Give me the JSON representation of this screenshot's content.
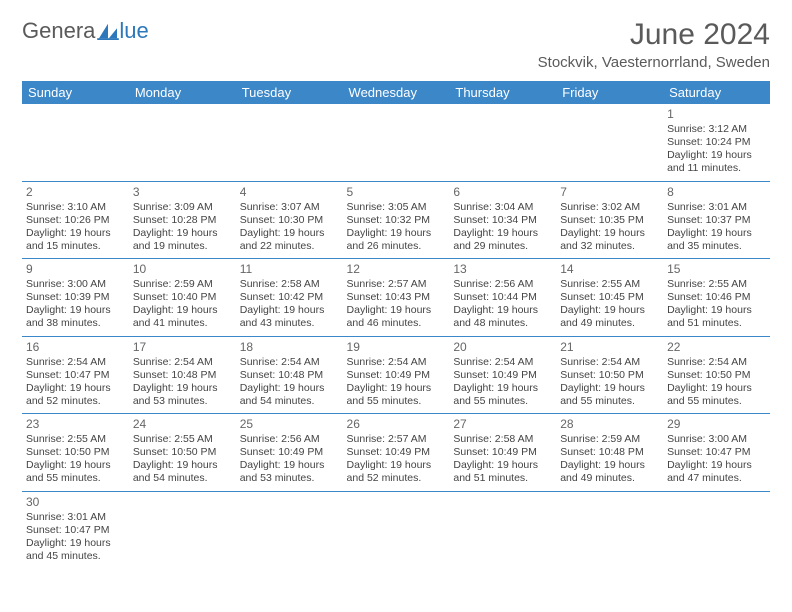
{
  "logo": {
    "text1": "Genera",
    "text2": "lue",
    "color1": "#5a5a5a",
    "color2": "#2c78bb",
    "iconColor": "#2c78bb"
  },
  "title": "June 2024",
  "location": "Stockvik, Vaesternorrland, Sweden",
  "theme": {
    "headerBg": "#3b87c8",
    "headerFg": "#ffffff",
    "ruleColor": "#3b87c8"
  },
  "dayHeaders": [
    "Sunday",
    "Monday",
    "Tuesday",
    "Wednesday",
    "Thursday",
    "Friday",
    "Saturday"
  ],
  "weeks": [
    [
      null,
      null,
      null,
      null,
      null,
      null,
      {
        "n": 1,
        "sr": "3:12 AM",
        "ss": "10:24 PM",
        "dl": "19 hours and 11 minutes."
      }
    ],
    [
      {
        "n": 2,
        "sr": "3:10 AM",
        "ss": "10:26 PM",
        "dl": "19 hours and 15 minutes."
      },
      {
        "n": 3,
        "sr": "3:09 AM",
        "ss": "10:28 PM",
        "dl": "19 hours and 19 minutes."
      },
      {
        "n": 4,
        "sr": "3:07 AM",
        "ss": "10:30 PM",
        "dl": "19 hours and 22 minutes."
      },
      {
        "n": 5,
        "sr": "3:05 AM",
        "ss": "10:32 PM",
        "dl": "19 hours and 26 minutes."
      },
      {
        "n": 6,
        "sr": "3:04 AM",
        "ss": "10:34 PM",
        "dl": "19 hours and 29 minutes."
      },
      {
        "n": 7,
        "sr": "3:02 AM",
        "ss": "10:35 PM",
        "dl": "19 hours and 32 minutes."
      },
      {
        "n": 8,
        "sr": "3:01 AM",
        "ss": "10:37 PM",
        "dl": "19 hours and 35 minutes."
      }
    ],
    [
      {
        "n": 9,
        "sr": "3:00 AM",
        "ss": "10:39 PM",
        "dl": "19 hours and 38 minutes."
      },
      {
        "n": 10,
        "sr": "2:59 AM",
        "ss": "10:40 PM",
        "dl": "19 hours and 41 minutes."
      },
      {
        "n": 11,
        "sr": "2:58 AM",
        "ss": "10:42 PM",
        "dl": "19 hours and 43 minutes."
      },
      {
        "n": 12,
        "sr": "2:57 AM",
        "ss": "10:43 PM",
        "dl": "19 hours and 46 minutes."
      },
      {
        "n": 13,
        "sr": "2:56 AM",
        "ss": "10:44 PM",
        "dl": "19 hours and 48 minutes."
      },
      {
        "n": 14,
        "sr": "2:55 AM",
        "ss": "10:45 PM",
        "dl": "19 hours and 49 minutes."
      },
      {
        "n": 15,
        "sr": "2:55 AM",
        "ss": "10:46 PM",
        "dl": "19 hours and 51 minutes."
      }
    ],
    [
      {
        "n": 16,
        "sr": "2:54 AM",
        "ss": "10:47 PM",
        "dl": "19 hours and 52 minutes."
      },
      {
        "n": 17,
        "sr": "2:54 AM",
        "ss": "10:48 PM",
        "dl": "19 hours and 53 minutes."
      },
      {
        "n": 18,
        "sr": "2:54 AM",
        "ss": "10:48 PM",
        "dl": "19 hours and 54 minutes."
      },
      {
        "n": 19,
        "sr": "2:54 AM",
        "ss": "10:49 PM",
        "dl": "19 hours and 55 minutes."
      },
      {
        "n": 20,
        "sr": "2:54 AM",
        "ss": "10:49 PM",
        "dl": "19 hours and 55 minutes."
      },
      {
        "n": 21,
        "sr": "2:54 AM",
        "ss": "10:50 PM",
        "dl": "19 hours and 55 minutes."
      },
      {
        "n": 22,
        "sr": "2:54 AM",
        "ss": "10:50 PM",
        "dl": "19 hours and 55 minutes."
      }
    ],
    [
      {
        "n": 23,
        "sr": "2:55 AM",
        "ss": "10:50 PM",
        "dl": "19 hours and 55 minutes."
      },
      {
        "n": 24,
        "sr": "2:55 AM",
        "ss": "10:50 PM",
        "dl": "19 hours and 54 minutes."
      },
      {
        "n": 25,
        "sr": "2:56 AM",
        "ss": "10:49 PM",
        "dl": "19 hours and 53 minutes."
      },
      {
        "n": 26,
        "sr": "2:57 AM",
        "ss": "10:49 PM",
        "dl": "19 hours and 52 minutes."
      },
      {
        "n": 27,
        "sr": "2:58 AM",
        "ss": "10:49 PM",
        "dl": "19 hours and 51 minutes."
      },
      {
        "n": 28,
        "sr": "2:59 AM",
        "ss": "10:48 PM",
        "dl": "19 hours and 49 minutes."
      },
      {
        "n": 29,
        "sr": "3:00 AM",
        "ss": "10:47 PM",
        "dl": "19 hours and 47 minutes."
      }
    ],
    [
      {
        "n": 30,
        "sr": "3:01 AM",
        "ss": "10:47 PM",
        "dl": "19 hours and 45 minutes."
      },
      null,
      null,
      null,
      null,
      null,
      null
    ]
  ],
  "labels": {
    "sunrise": "Sunrise:",
    "sunset": "Sunset:",
    "daylight": "Daylight:"
  }
}
